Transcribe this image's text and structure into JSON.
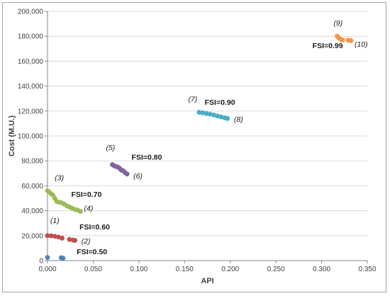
{
  "chart_data": {
    "type": "scatter",
    "title": "",
    "xlabel": "API",
    "ylabel": "Cost (M.U.)",
    "xlim": [
      0,
      0.35
    ],
    "ylim": [
      0,
      200000
    ],
    "x_ticks": [
      "0.000",
      "0.050",
      "0.100",
      "0.150",
      "0.200",
      "0.250",
      "0.300",
      "0.350"
    ],
    "y_ticks": [
      "0",
      "20,000",
      "40,000",
      "60,000",
      "80,000",
      "100,000",
      "120,000",
      "140,000",
      "160,000",
      "180,000",
      "200,000"
    ],
    "grid": "horizontal",
    "series": [
      {
        "label": "FSI=0.50",
        "color": "#4f81bd",
        "points": [
          [
            0.0,
            2500
          ],
          [
            0.015,
            2300
          ],
          [
            0.016,
            2000
          ],
          [
            0.017,
            1900
          ]
        ]
      },
      {
        "label": "FSI=0.60",
        "color": "#c0504d",
        "points": [
          [
            0.0,
            20000
          ],
          [
            0.004,
            19900
          ],
          [
            0.008,
            19500
          ],
          [
            0.012,
            18900
          ],
          [
            0.016,
            18000
          ],
          [
            0.024,
            17000
          ],
          [
            0.028,
            16500
          ],
          [
            0.03,
            16200
          ]
        ]
      },
      {
        "label": "FSI=0.70",
        "color": "#9bbb59",
        "points": [
          [
            0.0,
            56000
          ],
          [
            0.002,
            55000
          ],
          [
            0.004,
            53500
          ],
          [
            0.006,
            52500
          ],
          [
            0.008,
            50000
          ],
          [
            0.01,
            47500
          ],
          [
            0.012,
            47000
          ],
          [
            0.015,
            46500
          ],
          [
            0.018,
            45500
          ],
          [
            0.021,
            44000
          ],
          [
            0.024,
            43000
          ],
          [
            0.027,
            42000
          ],
          [
            0.03,
            41000
          ],
          [
            0.033,
            40500
          ],
          [
            0.036,
            39500
          ]
        ]
      },
      {
        "label": "FSI=0.80",
        "color": "#8064a2",
        "points": [
          [
            0.071,
            77000
          ],
          [
            0.073,
            76000
          ],
          [
            0.075,
            75500
          ],
          [
            0.077,
            75000
          ],
          [
            0.079,
            74000
          ],
          [
            0.081,
            72500
          ],
          [
            0.083,
            72000
          ],
          [
            0.085,
            70500
          ],
          [
            0.087,
            69500
          ]
        ]
      },
      {
        "label": "FSI=0.90",
        "color": "#4bacc6",
        "points": [
          [
            0.166,
            119000
          ],
          [
            0.17,
            118500
          ],
          [
            0.174,
            118000
          ],
          [
            0.178,
            117500
          ],
          [
            0.182,
            116800
          ],
          [
            0.186,
            116000
          ],
          [
            0.19,
            115300
          ],
          [
            0.194,
            114500
          ],
          [
            0.197,
            114000
          ]
        ]
      },
      {
        "label": "FSI=0.99",
        "color": "#f79646",
        "points": [
          [
            0.317,
            180000
          ],
          [
            0.319,
            178500
          ],
          [
            0.321,
            177500
          ],
          [
            0.323,
            177000
          ],
          [
            0.329,
            176800
          ],
          [
            0.332,
            176500
          ]
        ]
      }
    ],
    "annotations": [
      {
        "text": "(1)",
        "x": 0.003,
        "y": 30000
      },
      {
        "text": "(2)",
        "x": 0.037,
        "y": 13500
      },
      {
        "text": "(3)",
        "x": 0.008,
        "y": 64500
      },
      {
        "text": "(4)",
        "x": 0.04,
        "y": 40000
      },
      {
        "text": "(5)",
        "x": 0.064,
        "y": 88500
      },
      {
        "text": "(6)",
        "x": 0.094,
        "y": 66000
      },
      {
        "text": "(7)",
        "x": 0.154,
        "y": 127500
      },
      {
        "text": "(8)",
        "x": 0.204,
        "y": 111500
      },
      {
        "text": "(9)",
        "x": 0.313,
        "y": 188500
      },
      {
        "text": "(10)",
        "x": 0.336,
        "y": 171500
      }
    ],
    "fsi_labels": [
      {
        "text": "FSI=0.50",
        "x": 0.032,
        "y": 5000
      },
      {
        "text": "FSI=0.60",
        "x": 0.035,
        "y": 25000
      },
      {
        "text": "FSI=0.70",
        "x": 0.026,
        "y": 51000
      },
      {
        "text": "FSI=0.80",
        "x": 0.092,
        "y": 81000
      },
      {
        "text": "FSI=0.90",
        "x": 0.172,
        "y": 125000
      },
      {
        "text": "FSI=0.99",
        "x": 0.29,
        "y": 170500
      }
    ]
  }
}
